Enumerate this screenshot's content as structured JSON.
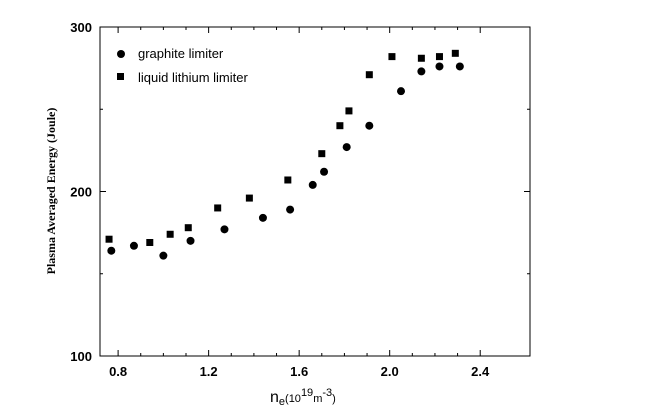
{
  "chart_data": {
    "type": "scatter",
    "xlabel": {
      "main": "n",
      "sub": "e",
      "rest": "(10",
      "exp1": "19",
      "m": "m",
      "exp2": "-3",
      "close": ")"
    },
    "ylabel": "Plasma Averaged Energy (Joule)",
    "xlim": [
      0.72,
      2.62
    ],
    "ylim": [
      100,
      300
    ],
    "x_ticks": [
      "0.8",
      "1.2",
      "1.6",
      "2.0",
      "2.4"
    ],
    "x_tick_values": [
      0.8,
      1.2,
      1.6,
      2.0,
      2.4
    ],
    "y_ticks": [
      "100",
      "200",
      "300"
    ],
    "y_tick_values": [
      100,
      200,
      300
    ],
    "grid": false,
    "legend_position": "top-left",
    "series": [
      {
        "name": "graphite limiter",
        "marker": "circle",
        "color": "#000000",
        "points": [
          [
            0.77,
            164
          ],
          [
            0.87,
            167
          ],
          [
            1.0,
            161
          ],
          [
            1.12,
            170
          ],
          [
            1.27,
            177
          ],
          [
            1.44,
            184
          ],
          [
            1.56,
            189
          ],
          [
            1.66,
            204
          ],
          [
            1.71,
            212
          ],
          [
            1.81,
            227
          ],
          [
            1.91,
            240
          ],
          [
            2.05,
            261
          ],
          [
            2.14,
            273
          ],
          [
            2.22,
            276
          ],
          [
            2.31,
            276
          ]
        ]
      },
      {
        "name": "liquid lithium limiter",
        "marker": "square",
        "color": "#000000",
        "points": [
          [
            0.76,
            171
          ],
          [
            0.94,
            169
          ],
          [
            1.03,
            174
          ],
          [
            1.11,
            178
          ],
          [
            1.24,
            190
          ],
          [
            1.38,
            196
          ],
          [
            1.55,
            207
          ],
          [
            1.7,
            223
          ],
          [
            1.78,
            240
          ],
          [
            1.82,
            249
          ],
          [
            1.91,
            271
          ],
          [
            2.01,
            282
          ],
          [
            2.14,
            281
          ],
          [
            2.22,
            282
          ],
          [
            2.29,
            284
          ]
        ]
      }
    ]
  }
}
